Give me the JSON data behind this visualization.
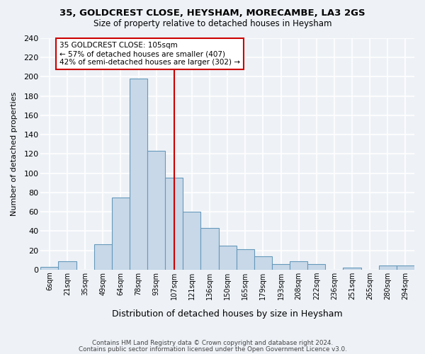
{
  "title1": "35, GOLDCREST CLOSE, HEYSHAM, MORECAMBE, LA3 2GS",
  "title2": "Size of property relative to detached houses in Heysham",
  "xlabel": "Distribution of detached houses by size in Heysham",
  "ylabel": "Number of detached properties",
  "bar_labels": [
    "6sqm",
    "21sqm",
    "35sqm",
    "49sqm",
    "64sqm",
    "78sqm",
    "93sqm",
    "107sqm",
    "121sqm",
    "136sqm",
    "150sqm",
    "165sqm",
    "179sqm",
    "193sqm",
    "208sqm",
    "222sqm",
    "236sqm",
    "251sqm",
    "265sqm",
    "280sqm",
    "294sqm"
  ],
  "bar_values": [
    3,
    9,
    0,
    26,
    75,
    198,
    123,
    95,
    60,
    43,
    25,
    21,
    14,
    6,
    9,
    6,
    0,
    2,
    0,
    4,
    4
  ],
  "bar_color": "#c8d8e8",
  "bar_edge_color": "#6699bb",
  "vline_x": 7,
  "vline_color": "#cc0000",
  "annotation_title": "35 GOLDCREST CLOSE: 105sqm",
  "annotation_line1": "← 57% of detached houses are smaller (407)",
  "annotation_line2": "42% of semi-detached houses are larger (302) →",
  "annotation_box_color": "#ffffff",
  "annotation_box_edge": "#cc0000",
  "ylim": [
    0,
    240
  ],
  "yticks": [
    0,
    20,
    40,
    60,
    80,
    100,
    120,
    140,
    160,
    180,
    200,
    220,
    240
  ],
  "footer1": "Contains HM Land Registry data © Crown copyright and database right 2024.",
  "footer2": "Contains public sector information licensed under the Open Government Licence v3.0.",
  "bg_color": "#eef2f7",
  "grid_color": "#ffffff"
}
